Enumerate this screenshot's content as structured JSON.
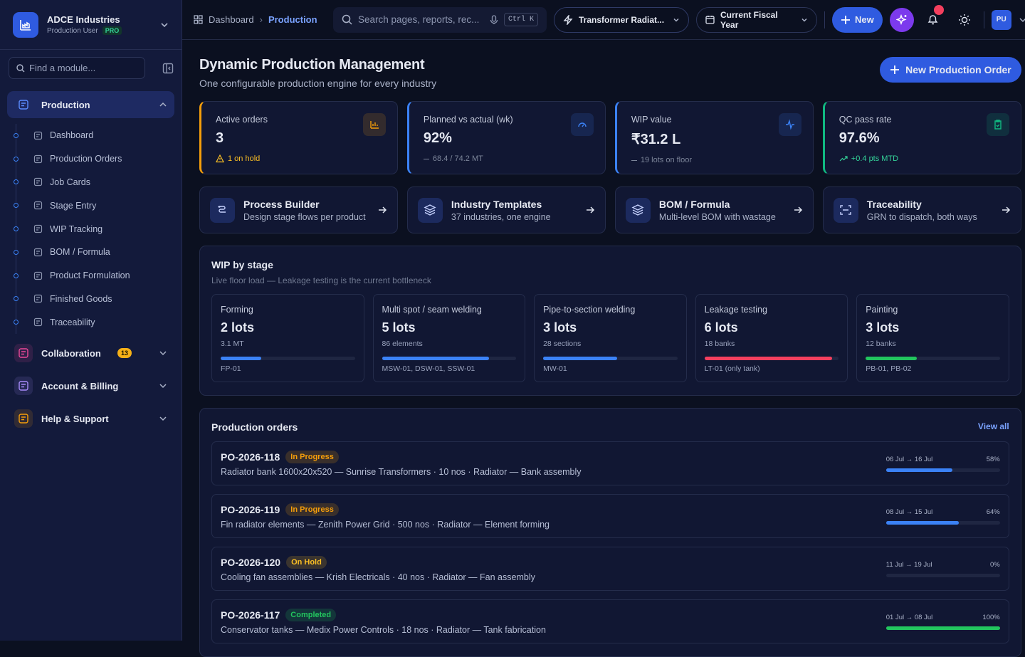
{
  "sidebar": {
    "org": "ADCE Industries",
    "role": "Production User",
    "plan": "PRO",
    "search": "Find a module...",
    "groups": [
      {
        "label": "Production",
        "color": "#5b8cff",
        "items": [
          "Dashboard",
          "Production Orders",
          "Job Cards",
          "Stage Entry",
          "WIP Tracking",
          "BOM / Formula",
          "Product Formulation",
          "Finished Goods",
          "Traceability"
        ]
      },
      {
        "label": "Collaboration",
        "color": "#ec4899",
        "badge": 13
      },
      {
        "label": "Account & Billing",
        "color": "#a78bfa"
      },
      {
        "label": "Help & Support",
        "color": "#f59e0b"
      }
    ]
  },
  "topbar": {
    "breadcrumb": [
      "Dashboard",
      "Production"
    ],
    "search": "Search pages, reports, rec...",
    "shortcut": "Ctrl K",
    "template": "Transformer Radiat...",
    "period": "Current Fiscal Year",
    "new": "New",
    "avatar": "PU"
  },
  "header": {
    "title": "Dynamic Production Management",
    "subtitle": "One configurable production engine for every industry",
    "action": "New Production Order"
  },
  "kpis": [
    {
      "label": "Active orders",
      "value": "3",
      "note": "1 on hold",
      "color": "#f59e0b",
      "note_color": "#fbbf24"
    },
    {
      "label": "Planned vs actual (wk)",
      "value": "92%",
      "note": "68.4 / 74.2 MT",
      "color": "#3b82f6",
      "note_color": "#7c8599"
    },
    {
      "label": "WIP value",
      "value": "₹31.2 L",
      "note": "19 lots on floor",
      "color": "#3b82f6",
      "note_color": "#7c8599"
    },
    {
      "label": "QC pass rate",
      "value": "97.6%",
      "note": "+0.4 pts MTD",
      "color": "#10b981",
      "note_color": "#34d399"
    }
  ],
  "shortcuts": [
    {
      "title": "Process Builder",
      "desc": "Design stage flows per product"
    },
    {
      "title": "Industry Templates",
      "desc": "37 industries, one engine"
    },
    {
      "title": "BOM / Formula",
      "desc": "Multi-level BOM with wastage"
    },
    {
      "title": "Traceability",
      "desc": "GRN to dispatch, both ways"
    }
  ],
  "wip": {
    "title": "WIP by stage",
    "subtitle": "Live floor load — Leakage testing is the current bottleneck",
    "stages": [
      {
        "name": "Forming",
        "count": "2 lots",
        "detail": "3.1 MT",
        "bar_pct": 30,
        "color": "#3b82f6",
        "ids": "FP-01"
      },
      {
        "name": "Multi spot / seam welding",
        "count": "5 lots",
        "detail": "86 elements",
        "bar_pct": 80,
        "color": "#3b82f6",
        "ids": "MSW-01, DSW-01, SSW-01"
      },
      {
        "name": "Pipe-to-section welding",
        "count": "3 lots",
        "detail": "28 sections",
        "bar_pct": 55,
        "color": "#3b82f6",
        "ids": "MW-01"
      },
      {
        "name": "Leakage testing",
        "count": "6 lots",
        "detail": "18 banks",
        "bar_pct": 95,
        "color": "#f43f5e",
        "ids": "LT-01 (only tank)"
      },
      {
        "name": "Painting",
        "count": "3 lots",
        "detail": "12 banks",
        "bar_pct": 38,
        "color": "#22c55e",
        "ids": "PB-01, PB-02"
      }
    ]
  },
  "orders": {
    "title": "Production orders",
    "view_all": "View all",
    "items": [
      {
        "id": "PO-2026-118",
        "status": "In Progress",
        "status_color": "#f59e0b",
        "desc": "Radiator bank 1600x20x520 — Sunrise Transformers · 10 nos · Radiator — Bank assembly",
        "dates": "06 Jul → 16 Jul",
        "progress": 58,
        "progress_label": "58%",
        "bar_color": "#3b82f6"
      },
      {
        "id": "PO-2026-119",
        "status": "In Progress",
        "status_color": "#f59e0b",
        "desc": "Fin radiator elements — Zenith Power Grid · 500 nos · Radiator — Element forming",
        "dates": "08 Jul → 15 Jul",
        "progress": 64,
        "progress_label": "64%",
        "bar_color": "#3b82f6"
      },
      {
        "id": "PO-2026-120",
        "status": "On Hold",
        "status_color": "#fbbf24",
        "desc": "Cooling fan assemblies — Krish Electricals · 40 nos · Radiator — Fan assembly",
        "dates": "11 Jul → 19 Jul",
        "progress": 0,
        "progress_label": "0%",
        "bar_color": "#3b82f6"
      },
      {
        "id": "PO-2026-117",
        "status": "Completed",
        "status_color": "#22c55e",
        "desc": "Conservator tanks — Medix Power Controls · 18 nos · Radiator — Tank fabrication",
        "dates": "01 Jul → 08 Jul",
        "progress": 100,
        "progress_label": "100%",
        "bar_color": "#22c55e"
      }
    ]
  }
}
